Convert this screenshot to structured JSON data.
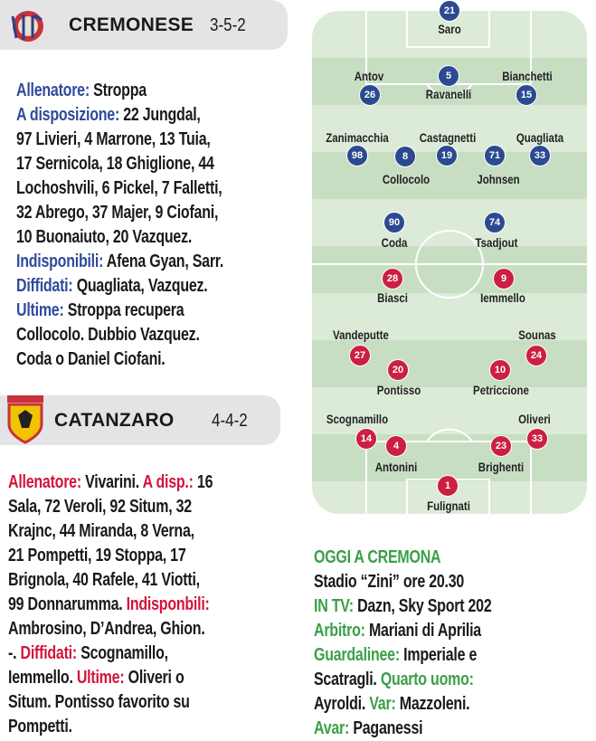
{
  "colors": {
    "blue_label": "#2f4b9c",
    "red_label": "#d4143c",
    "green_label": "#3b9f48",
    "home_marker": "#2b4a91",
    "away_marker": "#cc1f43",
    "pitch_light": "#dcebd8",
    "pitch_dark": "#c8dec3"
  },
  "home": {
    "team": "CREMONESE",
    "formation": "3-5-2",
    "logo": "cremonese-crest-icon",
    "lines": [
      [
        {
          "c": "blue",
          "t": "Allenatore: "
        },
        {
          "t": "Stroppa"
        }
      ],
      [
        {
          "c": "blue",
          "t": "A disposizione: "
        },
        {
          "t": "22 Jungdal,"
        }
      ],
      [
        {
          "t": "97 Livieri, 4 Marrone, 13 Tuia,"
        }
      ],
      [
        {
          "t": "17 Sernicola, 18 Ghiglione, 44"
        }
      ],
      [
        {
          "t": "Lochoshvili, 6 Pickel, 7 Falletti,"
        }
      ],
      [
        {
          "t": "32 Abrego, 37 Majer, 9 Ciofani,"
        }
      ],
      [
        {
          "t": "10 Buonaiuto, 20 Vazquez."
        }
      ],
      [
        {
          "c": "blue",
          "t": "Indisponibili: "
        },
        {
          "t": "Afena Gyan, Sarr."
        }
      ],
      [
        {
          "c": "blue",
          "t": "Diffidati: "
        },
        {
          "t": "Quagliata, Vazquez."
        }
      ],
      [
        {
          "c": "blue",
          "t": "Ultime: "
        },
        {
          "t": "Stroppa recupera"
        }
      ],
      [
        {
          "t": "Collocolo. Dubbio Vazquez."
        }
      ],
      [
        {
          "t": "Coda o Daniel Ciofani."
        }
      ]
    ]
  },
  "away": {
    "team": "CATANZARO",
    "formation": "4-4-2",
    "logo": "catanzaro-crest-icon",
    "lines": [
      [
        {
          "c": "red",
          "t": "Allenatore: "
        },
        {
          "t": "Vivarini. "
        },
        {
          "c": "red",
          "t": "A disp.: "
        },
        {
          "t": "16"
        }
      ],
      [
        {
          "t": "Sala, 72 Veroli, 92 Situm, 32"
        }
      ],
      [
        {
          "t": "Krajnc, 44 Miranda, 8 Verna,"
        }
      ],
      [
        {
          "t": "21 Pompetti, 19 Stoppa, 17"
        }
      ],
      [
        {
          "t": "Brignola, 40 Rafele, 41 Viotti,"
        }
      ],
      [
        {
          "t": "99 Donnarumma. "
        },
        {
          "c": "red",
          "t": "Indisponbili:"
        }
      ],
      [
        {
          "t": "Ambrosino, D’Andrea, Ghion."
        }
      ],
      [
        {
          "t": "-. "
        },
        {
          "c": "red",
          "t": "Diffidati: "
        },
        {
          "t": "Scognamillo,"
        }
      ],
      [
        {
          "t": "Iemmello. "
        },
        {
          "c": "red",
          "t": "Ultime: "
        },
        {
          "t": "Oliveri o"
        }
      ],
      [
        {
          "t": "Situm. Pontisso favorito su"
        }
      ],
      [
        {
          "t": "Pompetti."
        }
      ]
    ]
  },
  "match": {
    "lines": [
      [
        {
          "c": "green",
          "t": "OGGI A CREMONA"
        }
      ],
      [
        {
          "t": "Stadio “Zini” ore 20.30"
        }
      ],
      [
        {
          "c": "green",
          "t": "IN TV: "
        },
        {
          "t": "Dazn, Sky Sport 202"
        }
      ],
      [
        {
          "c": "green",
          "t": "Arbitro: "
        },
        {
          "t": "Mariani di Aprilia"
        }
      ],
      [
        {
          "c": "green",
          "t": "Guardalinee: "
        },
        {
          "t": "Imperiale e"
        }
      ],
      [
        {
          "t": "Scatragli. "
        },
        {
          "c": "green",
          "t": "Quarto uomo:"
        }
      ],
      [
        {
          "t": "Ayroldi. "
        },
        {
          "c": "green",
          "t": "Var: "
        },
        {
          "t": "Mazzoleni."
        }
      ],
      [
        {
          "c": "green",
          "t": "Avar: "
        },
        {
          "t": "Paganessi"
        }
      ]
    ]
  },
  "pitch": {
    "home_players": [
      {
        "num": "21",
        "name": "Saro"
      },
      {
        "num": "26",
        "name": "Antov"
      },
      {
        "num": "5",
        "name": "Ravanelli"
      },
      {
        "num": "15",
        "name": "Bianchetti"
      },
      {
        "num": "98",
        "name": "Zanimacchia"
      },
      {
        "num": "8",
        "name": "Collocolo"
      },
      {
        "num": "19",
        "name": "Castagnetti"
      },
      {
        "num": "71",
        "name": "Johnsen"
      },
      {
        "num": "33",
        "name": "Quagliata"
      },
      {
        "num": "90",
        "name": "Coda"
      },
      {
        "num": "74",
        "name": "Tsadjout"
      }
    ],
    "away_players": [
      {
        "num": "28",
        "name": "Biasci"
      },
      {
        "num": "9",
        "name": "Iemmello"
      },
      {
        "num": "27",
        "name": "Vandeputte"
      },
      {
        "num": "20",
        "name": "Pontisso"
      },
      {
        "num": "10",
        "name": "Petriccione"
      },
      {
        "num": "24",
        "name": "Sounas"
      },
      {
        "num": "14",
        "name": "Scognamillo"
      },
      {
        "num": "4",
        "name": "Antonini"
      },
      {
        "num": "23",
        "name": "Brighenti"
      },
      {
        "num": "33",
        "name": "Oliveri"
      },
      {
        "num": "1",
        "name": "Fulignati"
      }
    ]
  }
}
